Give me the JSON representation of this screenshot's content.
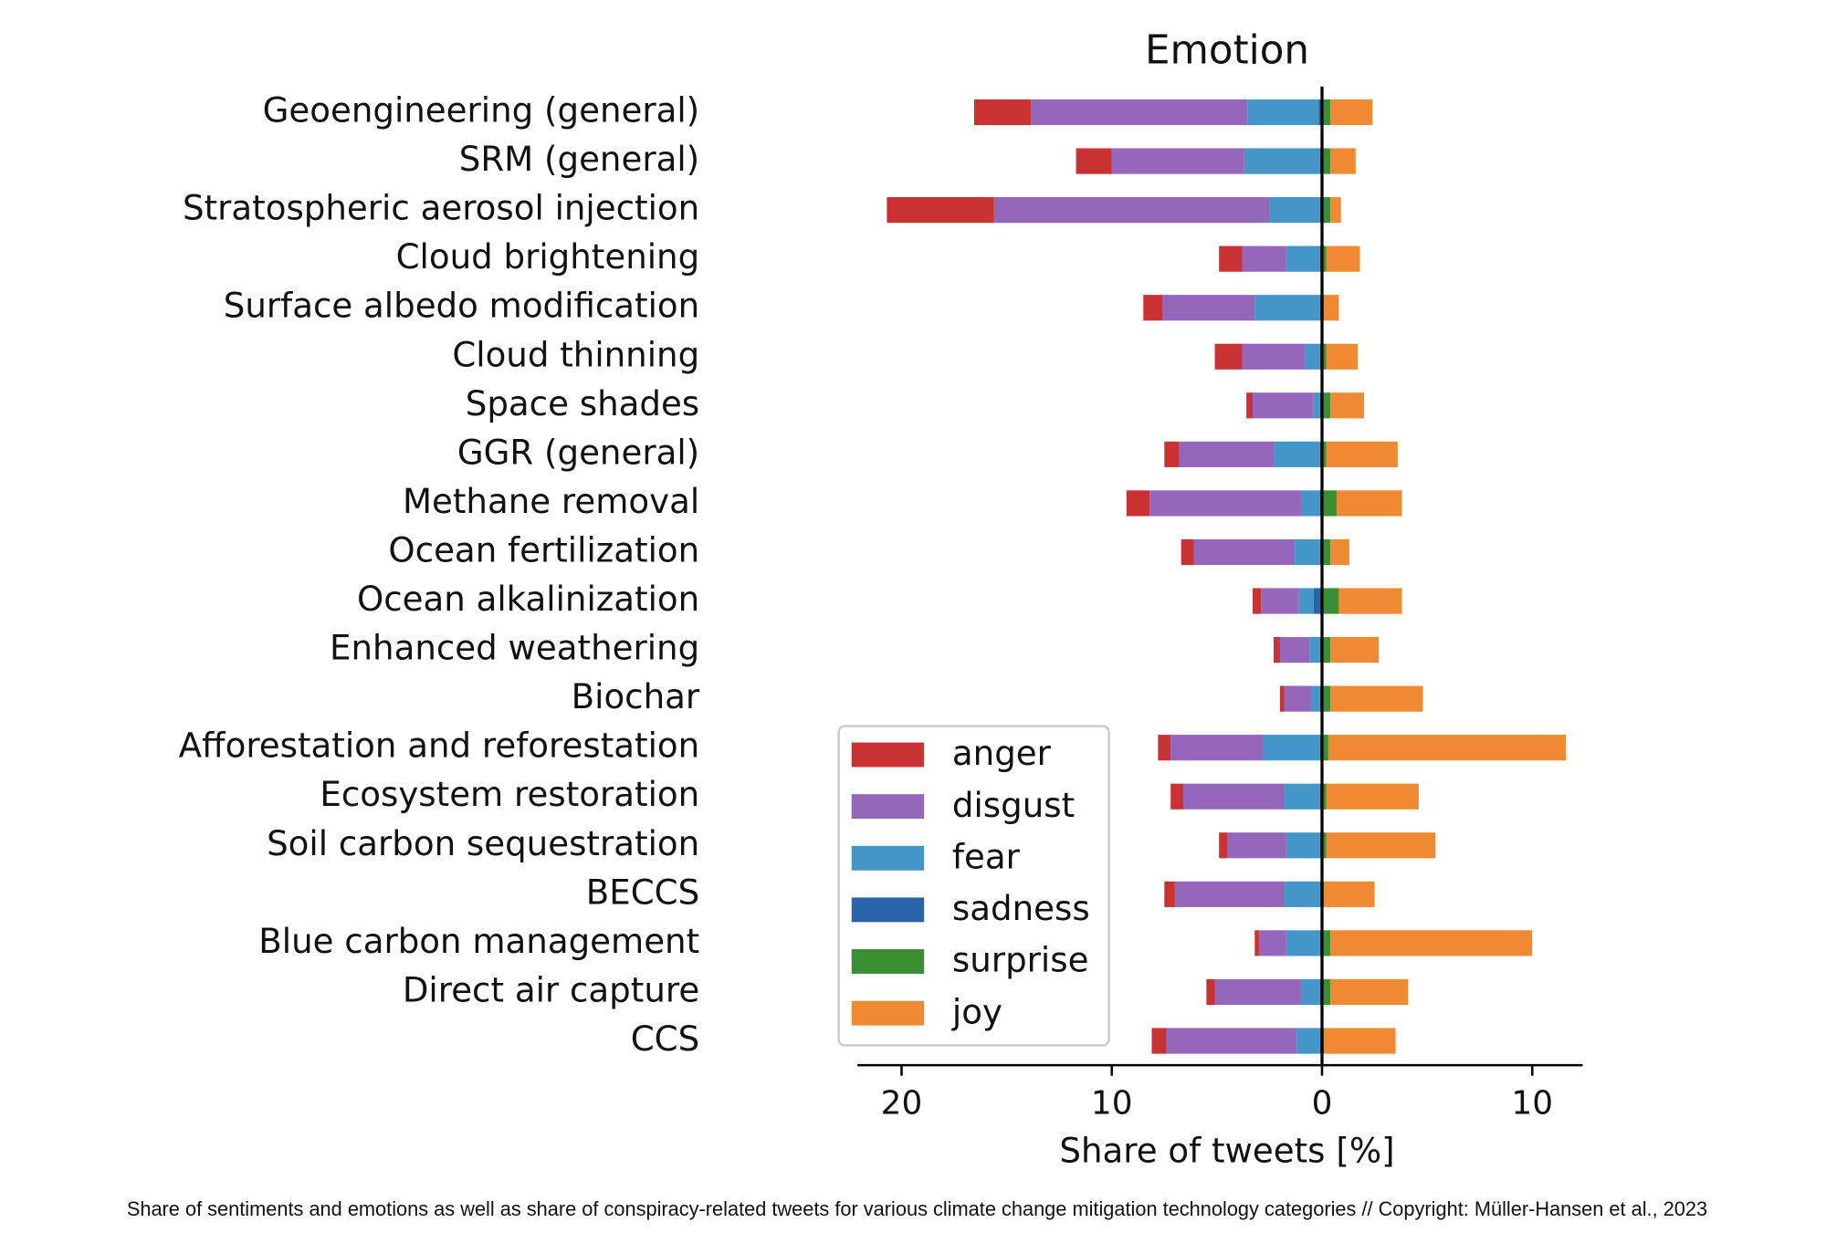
{
  "chart_data": {
    "type": "diverging-stacked-barh",
    "title": "Emotion",
    "xlabel": "Share of tweets [%]",
    "caption": "Share of sentiments and emotions as well as share of conspiracy-related tweets for various climate change mitigation technology categories // Copyright: Müller-Hansen et al., 2023",
    "categories": [
      "Geoengineering (general)",
      "SRM (general)",
      "Stratospheric aerosol injection",
      "Cloud brightening",
      "Surface albedo modification",
      "Cloud thinning",
      "Space shades",
      "GGR (general)",
      "Methane removal",
      "Ocean fertilization",
      "Ocean alkalinization",
      "Enhanced weathering",
      "Biochar",
      "Afforestation and reforestation",
      "Ecosystem restoration",
      "Soil carbon sequestration",
      "BECCS",
      "Blue carbon management",
      "Direct air capture",
      "CCS"
    ],
    "series": [
      {
        "name": "anger",
        "color": "#c93232",
        "values": [
          -2.7,
          -1.7,
          -5.1,
          -1.1,
          -0.9,
          -1.3,
          -0.3,
          -0.7,
          -1.1,
          -0.6,
          -0.4,
          -0.3,
          -0.2,
          -0.6,
          -0.6,
          -0.4,
          -0.5,
          -0.2,
          -0.4,
          -0.7
        ]
      },
      {
        "name": "disgust",
        "color": "#9467bd",
        "values": [
          -10.3,
          -6.3,
          -13.1,
          -2.1,
          -4.4,
          -3.0,
          -2.9,
          -4.5,
          -7.2,
          -4.8,
          -1.8,
          -1.4,
          -1.3,
          -4.4,
          -4.8,
          -2.8,
          -5.2,
          -1.3,
          -4.1,
          -6.2
        ]
      },
      {
        "name": "fear",
        "color": "#4596c8",
        "values": [
          -3.4,
          -3.6,
          -2.4,
          -1.6,
          -3.1,
          -0.7,
          -0.3,
          -2.2,
          -0.9,
          -1.2,
          -0.7,
          -0.5,
          -0.4,
          -2.7,
          -1.7,
          -1.6,
          -1.7,
          -1.6,
          -0.9,
          -1.1
        ]
      },
      {
        "name": "sadness",
        "color": "#2a63a8",
        "values": [
          -0.15,
          -0.1,
          -0.1,
          -0.1,
          -0.1,
          -0.1,
          -0.1,
          -0.1,
          -0.1,
          -0.1,
          -0.4,
          -0.1,
          -0.1,
          -0.1,
          -0.1,
          -0.1,
          -0.1,
          -0.1,
          -0.1,
          -0.1
        ]
      },
      {
        "name": "surprise",
        "color": "#3a8f35",
        "values": [
          0.4,
          0.4,
          0.4,
          0.2,
          0.1,
          0.2,
          0.4,
          0.2,
          0.7,
          0.4,
          0.8,
          0.4,
          0.4,
          0.3,
          0.2,
          0.2,
          0.1,
          0.4,
          0.4,
          0.1
        ]
      },
      {
        "name": "joy",
        "color": "#ef8a32",
        "values": [
          2.0,
          1.2,
          0.5,
          1.6,
          0.7,
          1.5,
          1.6,
          3.4,
          3.1,
          0.9,
          3.0,
          2.3,
          4.4,
          11.3,
          4.4,
          5.2,
          2.4,
          9.6,
          3.7,
          3.4
        ]
      }
    ],
    "xlim": [
      -22.1,
      12.4
    ],
    "xticks": [
      {
        "value": -20,
        "label": "20"
      },
      {
        "value": -10,
        "label": "10"
      },
      0,
      10
    ]
  }
}
